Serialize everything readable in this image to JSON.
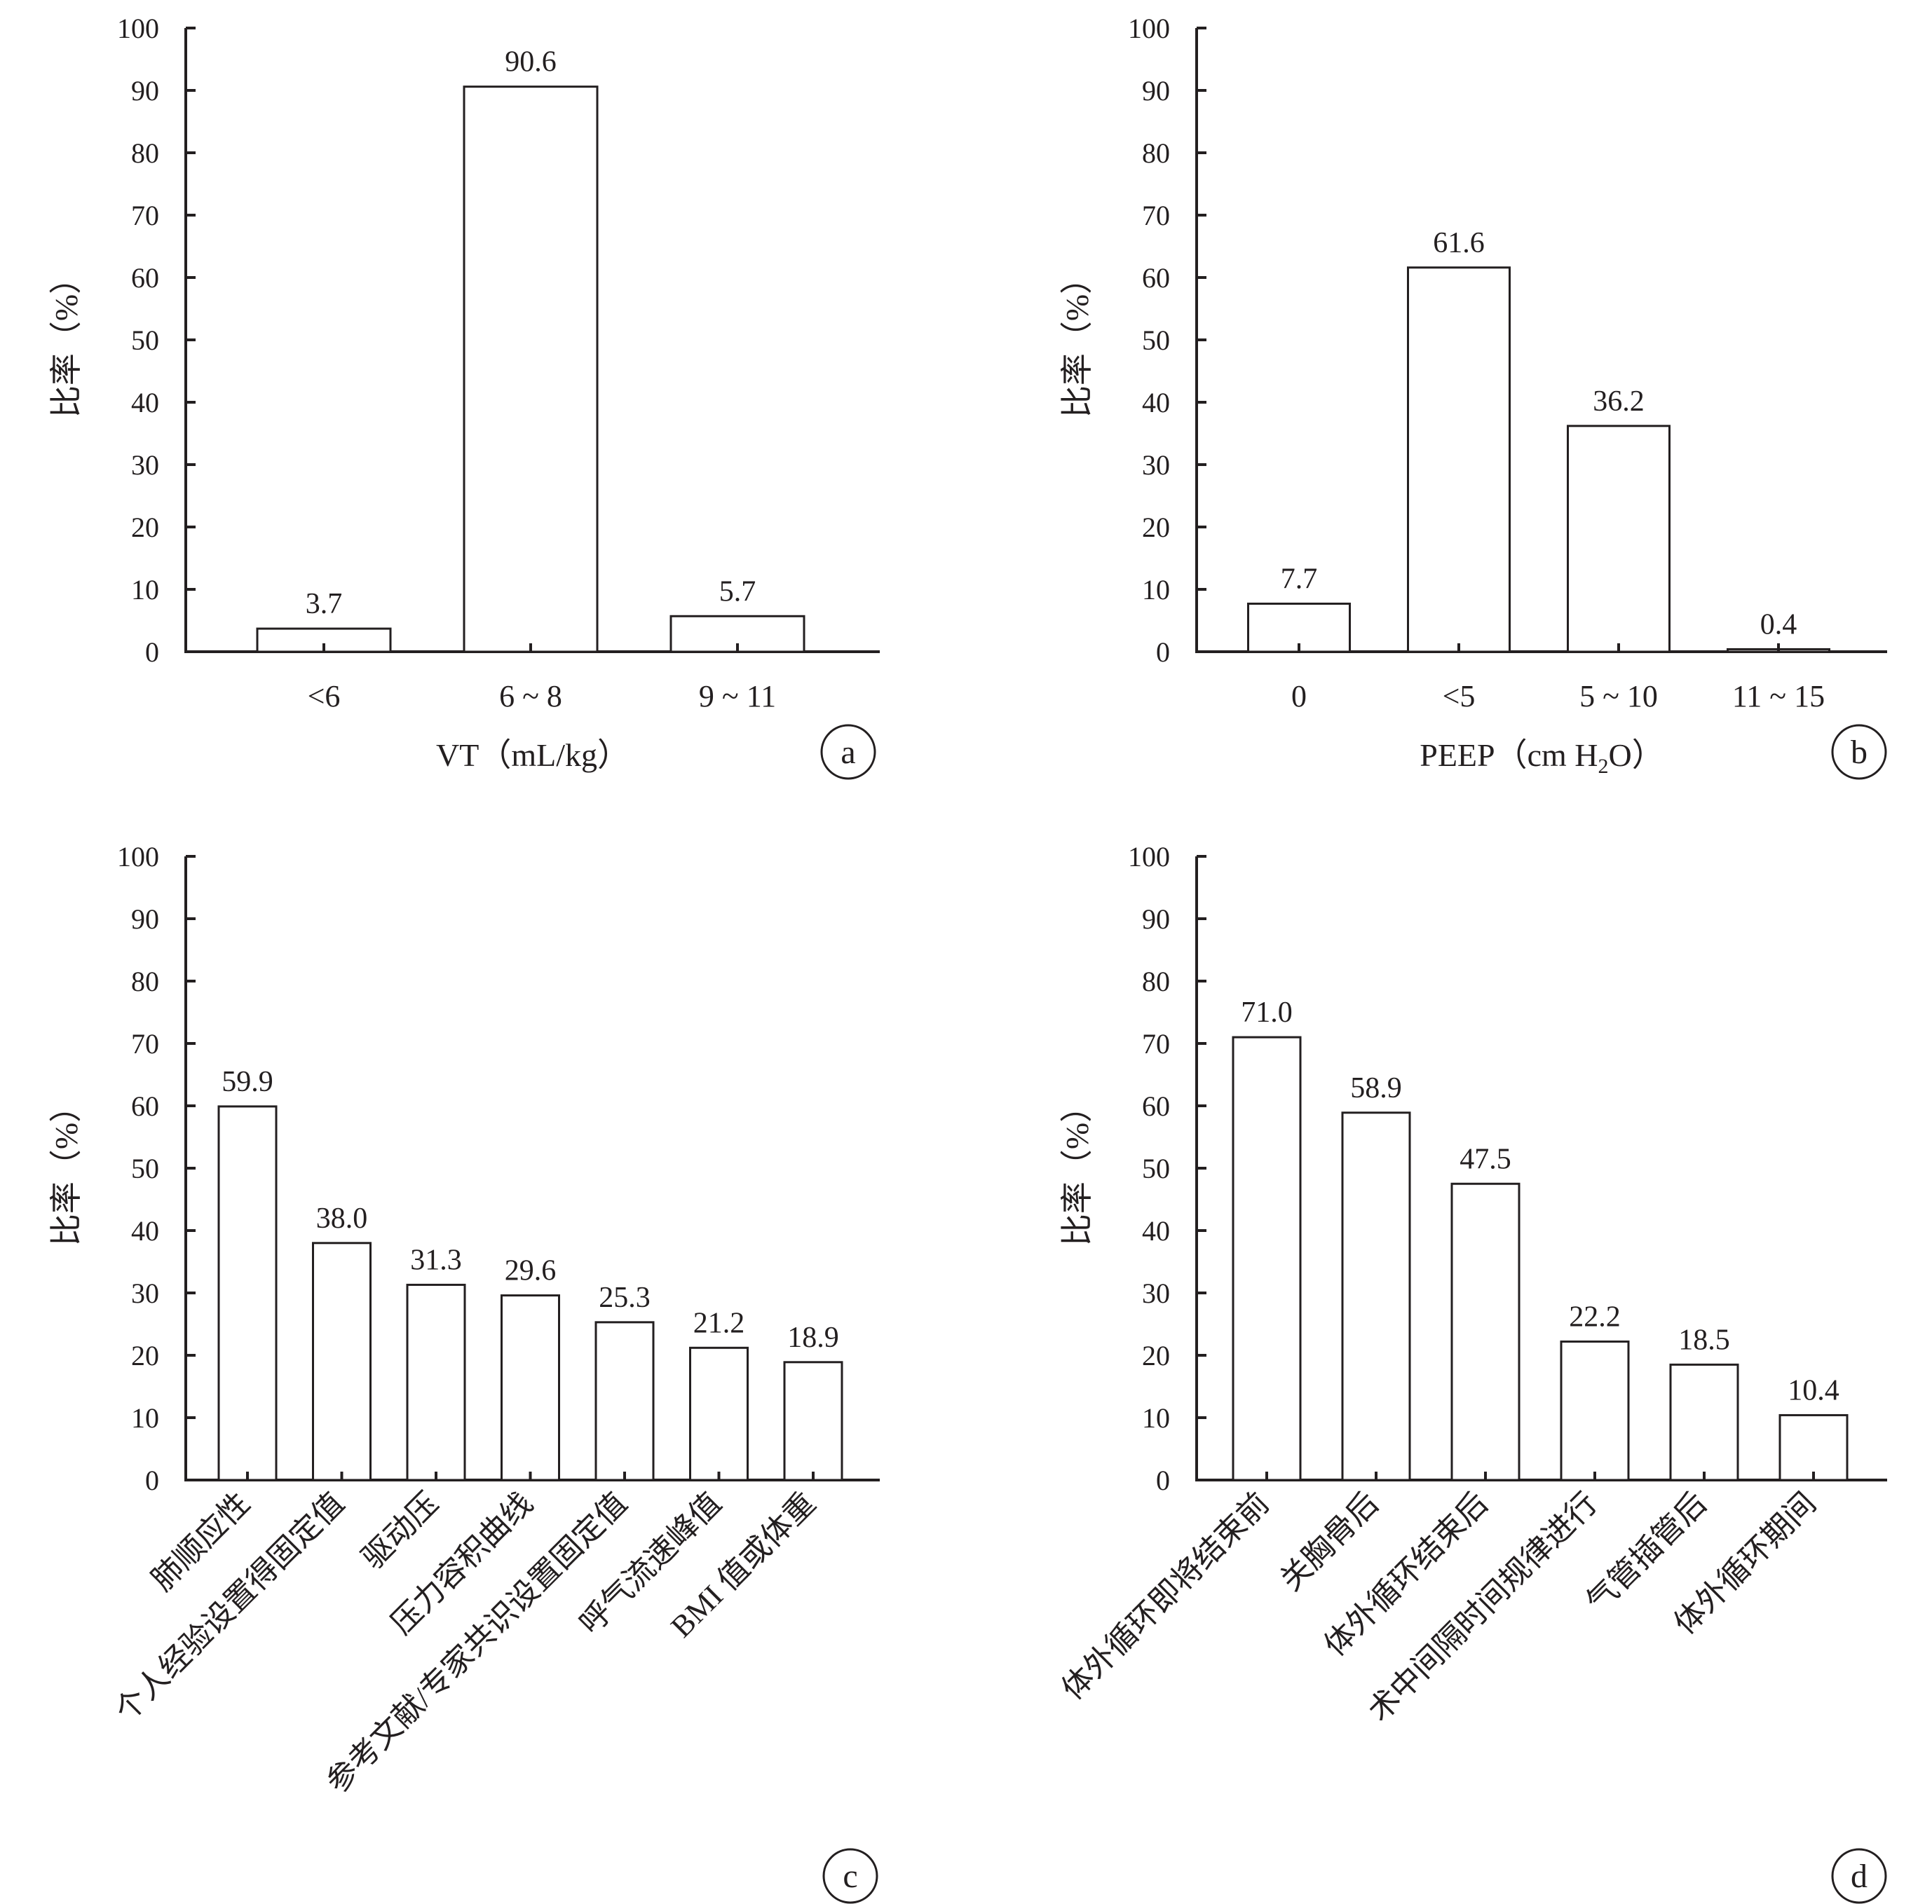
{
  "chart_data": [
    {
      "type": "bar",
      "panel_label": "a",
      "categories": [
        "<6",
        "6 ~ 8",
        "9 ~ 11"
      ],
      "values": [
        3.7,
        90.6,
        5.7
      ],
      "value_labels": [
        "3.7",
        "90.6",
        "5.7"
      ],
      "xlabel": "VT（mL/kg）",
      "ylabel": "比率（%）",
      "ylim": [
        0,
        100
      ],
      "yticks": [
        0,
        10,
        20,
        30,
        40,
        50,
        60,
        70,
        80,
        90,
        100
      ],
      "grid": false,
      "rotated_labels": false
    },
    {
      "type": "bar",
      "panel_label": "b",
      "categories": [
        "0",
        "<5",
        "5 ~ 10",
        "11 ~ 15"
      ],
      "values": [
        7.7,
        61.6,
        36.2,
        0.4
      ],
      "value_labels": [
        "7.7",
        "61.6",
        "36.2",
        "0.4"
      ],
      "xlabel": "PEEP（cm H2O）",
      "ylabel": "比率（%）",
      "ylim": [
        0,
        100
      ],
      "yticks": [
        0,
        10,
        20,
        30,
        40,
        50,
        60,
        70,
        80,
        90,
        100
      ],
      "grid": false,
      "rotated_labels": false
    },
    {
      "type": "bar",
      "panel_label": "c",
      "categories": [
        "肺顺应性",
        "个人经验设置得固定值",
        "驱动压",
        "压力容积曲线",
        "参考文献/专家共识设置固定值",
        "呼气流速峰值",
        "BMI 值或体重"
      ],
      "values": [
        59.9,
        38.0,
        31.3,
        29.6,
        25.3,
        21.2,
        18.9
      ],
      "value_labels": [
        "59.9",
        "38.0",
        "31.3",
        "29.6",
        "25.3",
        "21.2",
        "18.9"
      ],
      "xlabel": "",
      "ylabel": "比率（%）",
      "ylim": [
        0,
        100
      ],
      "yticks": [
        0,
        10,
        20,
        30,
        40,
        50,
        60,
        70,
        80,
        90,
        100
      ],
      "grid": false,
      "rotated_labels": true
    },
    {
      "type": "bar",
      "panel_label": "d",
      "categories": [
        "体外循环即将结束前",
        "关胸骨后",
        "体外循环结束后",
        "术中间隔时间规律进行",
        "气管插管后",
        "体外循环期间"
      ],
      "values": [
        71.0,
        58.9,
        47.5,
        22.2,
        18.5,
        10.4
      ],
      "value_labels": [
        "71.0",
        "58.9",
        "47.5",
        "22.2",
        "18.5",
        "10.4"
      ],
      "xlabel": "",
      "ylabel": "比率（%）",
      "ylim": [
        0,
        100
      ],
      "yticks": [
        0,
        10,
        20,
        30,
        40,
        50,
        60,
        70,
        80,
        90,
        100
      ],
      "grid": false,
      "rotated_labels": true
    }
  ]
}
